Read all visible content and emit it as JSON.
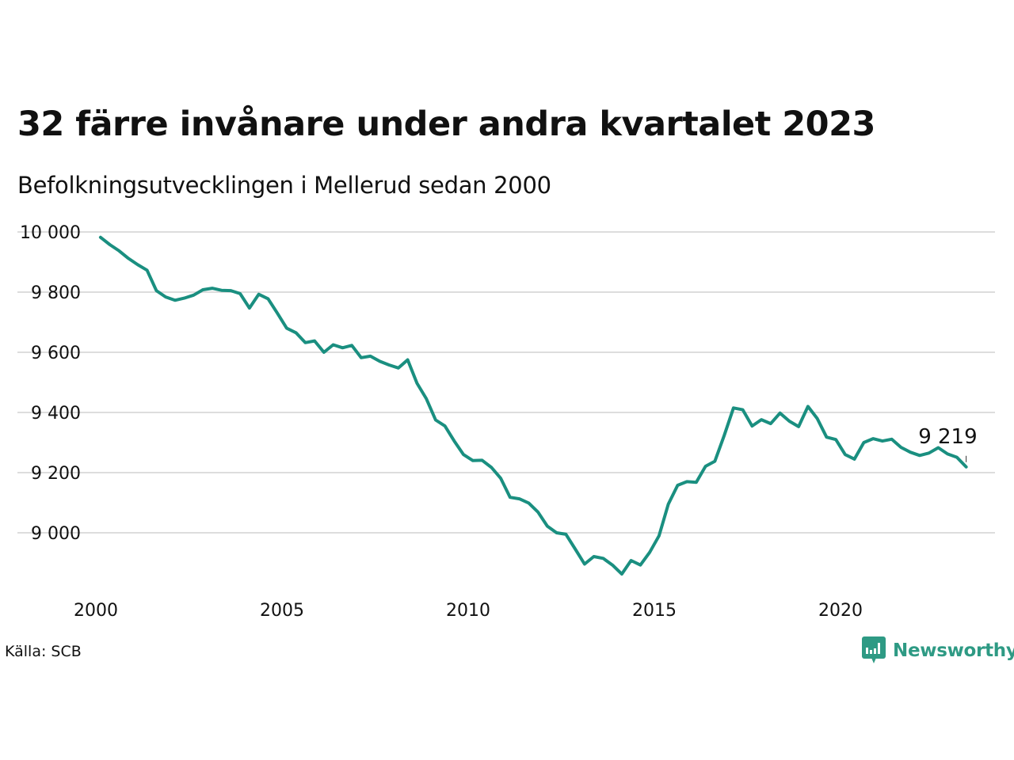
{
  "title": "32 färre invånare under andra kvartalet 2023",
  "subtitle": "Befolkningsutvecklingen i Mellerud sedan 2000",
  "source": "Källa: SCB",
  "logo": {
    "text": "Newsworthy",
    "icon": "newsworthy-chart-bubble-icon",
    "color": "#2e9a84"
  },
  "colors": {
    "line": "#1a8f80",
    "grid": "#dddddd",
    "text": "#111111"
  },
  "chart_data": {
    "type": "line",
    "title": "32 färre invånare under andra kvartalet 2023",
    "subtitle": "Befolkningsutvecklingen i Mellerud sedan 2000",
    "xlabel": "",
    "ylabel": "",
    "xlim": [
      2000,
      2024
    ],
    "ylim": [
      8850,
      10000
    ],
    "x_ticks": [
      2000,
      2005,
      2010,
      2015,
      2020
    ],
    "x_tick_labels": [
      "2000",
      "2005",
      "2010",
      "2015",
      "2020"
    ],
    "y_ticks": [
      9000,
      9200,
      9400,
      9600,
      9800,
      10000
    ],
    "y_tick_labels": [
      "9 000",
      "9 200",
      "9 400",
      "9 600",
      "9 800",
      "10 000"
    ],
    "grid": "horizontal",
    "end_label": "9 219",
    "series": [
      {
        "x": [
          2000.125,
          2000.375,
          2000.625,
          2000.875,
          2001.125,
          2001.375,
          2001.625,
          2001.875,
          2002.125,
          2002.375,
          2002.625,
          2002.875,
          2003.125,
          2003.375,
          2003.625,
          2003.875,
          2004.125,
          2004.375,
          2004.625,
          2004.875,
          2005.125,
          2005.375,
          2005.625,
          2005.875,
          2006.125,
          2006.375,
          2006.625,
          2006.875,
          2007.125,
          2007.375,
          2007.625,
          2007.875,
          2008.125,
          2008.375,
          2008.625,
          2008.875,
          2009.125,
          2009.375,
          2009.625,
          2009.875,
          2010.125,
          2010.375,
          2010.625,
          2010.875,
          2011.125,
          2011.375,
          2011.625,
          2011.875,
          2012.125,
          2012.375,
          2012.625,
          2012.875,
          2013.125,
          2013.375,
          2013.625,
          2013.875,
          2014.125,
          2014.375,
          2014.625,
          2014.875,
          2015.125,
          2015.375,
          2015.625,
          2015.875,
          2016.125,
          2016.375,
          2016.625,
          2016.875,
          2017.125,
          2017.375,
          2017.625,
          2017.875,
          2018.125,
          2018.375,
          2018.625,
          2018.875,
          2019.125,
          2019.375,
          2019.625,
          2019.875,
          2020.125,
          2020.375,
          2020.625,
          2020.875,
          2021.125,
          2021.375,
          2021.625,
          2021.875,
          2022.125,
          2022.375,
          2022.625,
          2022.875,
          2023.125,
          2023.375
        ],
        "values": [
          9982,
          9958,
          9937,
          9912,
          9891,
          9873,
          9805,
          9784,
          9773,
          9780,
          9790,
          9808,
          9813,
          9806,
          9805,
          9795,
          9747,
          9793,
          9778,
          9730,
          9680,
          9665,
          9632,
          9638,
          9600,
          9625,
          9615,
          9623,
          9582,
          9587,
          9570,
          9558,
          9548,
          9575,
          9497,
          9446,
          9375,
          9355,
          9305,
          9260,
          9240,
          9241,
          9217,
          9181,
          9118,
          9113,
          9099,
          9069,
          9022,
          9000,
          8995,
          8946,
          8896,
          8921,
          8915,
          8893,
          8863,
          8908,
          8893,
          8935,
          8990,
          9095,
          9158,
          9170,
          9168,
          9221,
          9238,
          9323,
          9415,
          9409,
          9355,
          9376,
          9363,
          9398,
          9371,
          9353,
          9420,
          9380,
          9318,
          9310,
          9260,
          9245,
          9300,
          9313,
          9305,
          9311,
          9284,
          9268,
          9257,
          9265,
          9283,
          9262,
          9251,
          9219
        ]
      }
    ]
  }
}
